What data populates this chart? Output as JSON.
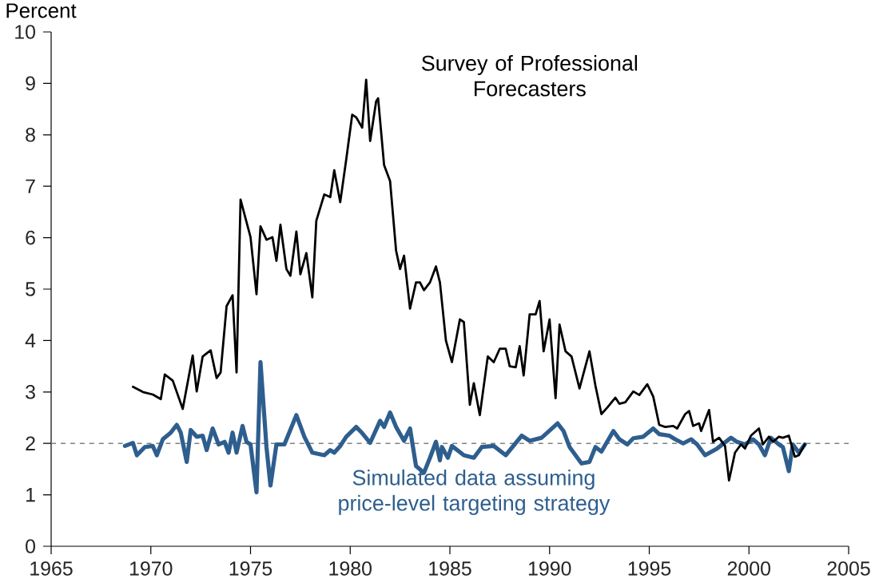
{
  "chart_data": {
    "type": "line",
    "ylabel": "Percent",
    "xlim": [
      1965,
      2005
    ],
    "xticks": [
      1965,
      1970,
      1975,
      1980,
      1985,
      1990,
      1995,
      2000,
      2005
    ],
    "ylim": [
      0,
      10
    ],
    "yticks": [
      0,
      1,
      2,
      3,
      4,
      5,
      6,
      7,
      8,
      9,
      10
    ],
    "marker": "none",
    "line_style": "solid",
    "ref_lines": [
      {
        "axis": "y",
        "value": 2,
        "color": "#808080",
        "line_style": "dashed"
      }
    ],
    "series": [
      {
        "name": "Survey of Professional Forecasters",
        "color": "#000000",
        "x": [
          1969.1,
          1969.6,
          1970.1,
          1970.5,
          1970.7,
          1971.1,
          1971.6,
          1972.1,
          1972.3,
          1972.6,
          1973.0,
          1973.3,
          1973.5,
          1973.8,
          1974.1,
          1974.3,
          1974.5,
          1975.0,
          1975.3,
          1975.5,
          1975.8,
          1976.1,
          1976.3,
          1976.5,
          1976.8,
          1977.0,
          1977.3,
          1977.5,
          1977.8,
          1978.1,
          1978.3,
          1978.7,
          1979.0,
          1979.2,
          1979.5,
          1979.8,
          1980.1,
          1980.3,
          1980.6,
          1980.8,
          1981.0,
          1981.3,
          1981.4,
          1981.7,
          1982.0,
          1982.3,
          1982.5,
          1982.7,
          1983.0,
          1983.3,
          1983.5,
          1983.7,
          1984.0,
          1984.3,
          1984.5,
          1984.8,
          1985.1,
          1985.5,
          1985.7,
          1986.0,
          1986.2,
          1986.5,
          1986.9,
          1987.2,
          1987.5,
          1987.8,
          1988.0,
          1988.3,
          1988.5,
          1988.7,
          1989.0,
          1989.3,
          1989.5,
          1989.7,
          1990.0,
          1990.3,
          1990.5,
          1990.8,
          1991.1,
          1991.5,
          1992.0,
          1992.3,
          1992.6,
          1992.9,
          1993.3,
          1993.5,
          1993.8,
          1994.2,
          1994.5,
          1994.9,
          1995.2,
          1995.5,
          1995.8,
          1996.2,
          1996.4,
          1996.8,
          1997.0,
          1997.2,
          1997.5,
          1997.6,
          1998.0,
          1998.2,
          1998.5,
          1998.8,
          1999.0,
          1999.3,
          1999.6,
          1999.8,
          2000.1,
          2000.5,
          2000.7,
          2001.0,
          2001.2,
          2001.5,
          2001.7,
          2002.0,
          2002.3,
          2002.5,
          2002.8
        ],
        "values": [
          3.1,
          3.0,
          2.95,
          2.86,
          3.34,
          3.22,
          2.67,
          3.71,
          3.01,
          3.69,
          3.81,
          3.27,
          3.38,
          4.67,
          4.88,
          3.38,
          6.74,
          6.01,
          4.9,
          6.22,
          5.96,
          6.01,
          5.55,
          6.25,
          5.39,
          5.26,
          6.12,
          5.29,
          5.7,
          4.84,
          6.33,
          6.84,
          6.79,
          7.31,
          6.69,
          7.52,
          8.39,
          8.34,
          8.14,
          9.07,
          7.88,
          8.65,
          8.71,
          7.41,
          7.1,
          5.75,
          5.39,
          5.65,
          4.62,
          5.13,
          5.13,
          4.98,
          5.13,
          5.44,
          5.13,
          4.0,
          3.58,
          4.41,
          4.36,
          2.75,
          3.17,
          2.55,
          3.69,
          3.58,
          3.84,
          3.84,
          3.5,
          3.48,
          3.89,
          3.32,
          4.51,
          4.51,
          4.77,
          3.79,
          4.41,
          2.88,
          4.31,
          3.79,
          3.69,
          3.07,
          3.79,
          3.12,
          2.57,
          2.7,
          2.89,
          2.77,
          2.8,
          3.01,
          2.94,
          3.15,
          2.91,
          2.36,
          2.32,
          2.34,
          2.29,
          2.57,
          2.63,
          2.34,
          2.39,
          2.24,
          2.65,
          2.03,
          2.11,
          1.95,
          1.28,
          1.82,
          1.98,
          1.9,
          2.15,
          2.29,
          1.98,
          2.13,
          2.03,
          2.13,
          2.11,
          2.15,
          1.74,
          1.77,
          1.98
        ]
      },
      {
        "name": "Simulated data assuming price-level targeting strategy",
        "color": "#2e5e8e",
        "x": [
          1968.7,
          1969.1,
          1969.3,
          1969.7,
          1970.1,
          1970.3,
          1970.6,
          1971.0,
          1971.3,
          1971.5,
          1971.8,
          1972.0,
          1972.3,
          1972.6,
          1972.8,
          1973.1,
          1973.4,
          1973.7,
          1973.9,
          1974.1,
          1974.3,
          1974.6,
          1974.8,
          1975.0,
          1975.3,
          1975.5,
          1975.8,
          1976.0,
          1976.3,
          1976.7,
          1977.3,
          1977.7,
          1978.1,
          1978.7,
          1979.0,
          1979.2,
          1979.5,
          1979.8,
          1980.3,
          1980.6,
          1981.0,
          1981.5,
          1981.7,
          1982.0,
          1982.3,
          1982.7,
          1983.0,
          1983.3,
          1983.7,
          1984.0,
          1984.3,
          1984.5,
          1984.6,
          1984.9,
          1985.1,
          1985.7,
          1986.2,
          1986.6,
          1987.2,
          1987.8,
          1988.6,
          1989.0,
          1989.6,
          1990.4,
          1990.7,
          1991.0,
          1991.6,
          1992.0,
          1992.3,
          1992.6,
          1993.2,
          1993.5,
          1993.9,
          1994.2,
          1994.7,
          1995.2,
          1995.5,
          1996.0,
          1996.3,
          1996.7,
          1997.1,
          1997.4,
          1997.8,
          1998.4,
          1999.1,
          1999.4,
          1999.8,
          2000.2,
          2000.5,
          2000.8,
          2001.1,
          2001.5,
          2001.7,
          2002.0,
          2002.2,
          2002.5,
          2002.8
        ],
        "values": [
          1.95,
          2.01,
          1.77,
          1.93,
          1.95,
          1.77,
          2.08,
          2.21,
          2.36,
          2.21,
          1.64,
          2.26,
          2.13,
          2.15,
          1.87,
          2.29,
          1.98,
          2.03,
          1.82,
          2.21,
          1.82,
          2.34,
          2.03,
          1.98,
          1.05,
          3.58,
          1.93,
          1.18,
          1.98,
          1.98,
          2.55,
          2.13,
          1.82,
          1.77,
          1.87,
          1.82,
          1.95,
          2.13,
          2.32,
          2.2,
          2.01,
          2.44,
          2.32,
          2.6,
          2.32,
          2.05,
          2.29,
          1.56,
          1.43,
          1.72,
          2.03,
          1.67,
          1.93,
          1.72,
          1.95,
          1.77,
          1.72,
          1.93,
          1.95,
          1.77,
          2.15,
          2.05,
          2.11,
          2.39,
          2.24,
          1.93,
          1.61,
          1.64,
          1.93,
          1.84,
          2.24,
          2.08,
          1.98,
          2.1,
          2.13,
          2.29,
          2.18,
          2.15,
          2.08,
          2.0,
          2.08,
          1.98,
          1.77,
          1.9,
          2.11,
          2.03,
          1.98,
          2.08,
          1.98,
          1.77,
          2.11,
          1.98,
          1.93,
          1.46,
          1.98,
          1.82,
          1.98
        ]
      }
    ]
  }
}
